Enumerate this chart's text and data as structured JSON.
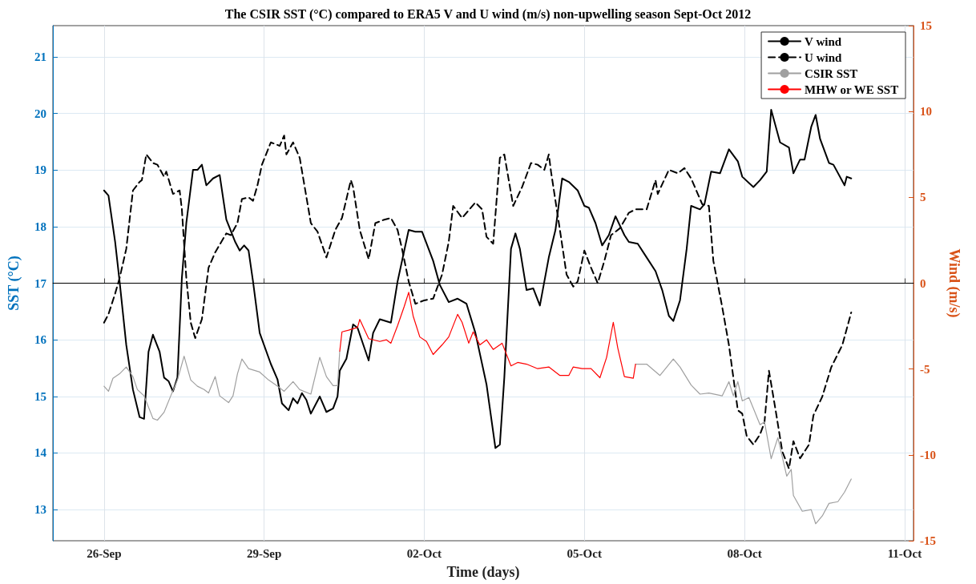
{
  "chart_data": {
    "type": "line",
    "title": "The CSIR SST (°C) compared to ERA5 V and U wind (m/s) non-upwelling season Sept-Oct 2012",
    "xlabel": "Time (days)",
    "ylabel": "SST (°C)",
    "y2label": "Wind (m/s)",
    "xlim": [
      "2012-09-25T01:00",
      "2012-10-11T04:00"
    ],
    "xticks": [
      {
        "value": "2012-09-26",
        "label": "26-Sep"
      },
      {
        "value": "2012-09-29",
        "label": "29-Sep"
      },
      {
        "value": "2012-10-02",
        "label": "02-Oct"
      },
      {
        "value": "2012-10-05",
        "label": "05-Oct"
      },
      {
        "value": "2012-10-08",
        "label": "08-Oct"
      },
      {
        "value": "2012-10-11",
        "label": "11-Oct"
      }
    ],
    "ylim": [
      12.45,
      21.55
    ],
    "yticks": [
      13,
      14,
      15,
      16,
      17,
      18,
      19,
      20,
      21
    ],
    "y2lim": [
      -15,
      15
    ],
    "y2ticks": [
      -15,
      -10,
      -5,
      0,
      5,
      10,
      15
    ],
    "grid": true,
    "legend": "top right",
    "marker": "none",
    "ref_lines": [
      {
        "axis": "y2",
        "value": 0,
        "color": "#000000"
      }
    ],
    "series": [
      {
        "name": "V wind",
        "color": "#000000",
        "axis": "y2",
        "line_style": "solid",
        "x": [
          "2012-09-26T00:00",
          "2012-09-26T02:00",
          "2012-09-26T05:00",
          "2012-09-26T07:00",
          "2012-09-26T10:00",
          "2012-09-26T13:00",
          "2012-09-26T16:00",
          "2012-09-26T18:00",
          "2012-09-26T20:00",
          "2012-09-26T22:00",
          "2012-09-27T01:00",
          "2012-09-27T03:00",
          "2012-09-27T05:00",
          "2012-09-27T07:00",
          "2012-09-27T09:00",
          "2012-09-27T11:00",
          "2012-09-27T13:00",
          "2012-09-27T16:00",
          "2012-09-27T18:00",
          "2012-09-27T20:00",
          "2012-09-27T22:00",
          "2012-09-28T01:00",
          "2012-09-28T04:00",
          "2012-09-28T07:00",
          "2012-09-28T11:00",
          "2012-09-28T13:00",
          "2012-09-28T15:00",
          "2012-09-28T17:00",
          "2012-09-28T19:00",
          "2012-09-28T22:00",
          "2012-09-29T03:00",
          "2012-09-29T06:00",
          "2012-09-29T08:00",
          "2012-09-29T11:00",
          "2012-09-29T13:00",
          "2012-09-29T15:00",
          "2012-09-29T17:00",
          "2012-09-29T19:00",
          "2012-09-29T21:00",
          "2012-09-30T01:00",
          "2012-09-30T04:00",
          "2012-09-30T07:00",
          "2012-09-30T09:00",
          "2012-09-30T10:00",
          "2012-09-30T13:00",
          "2012-09-30T16:00",
          "2012-09-30T18:00",
          "2012-09-30T23:00",
          "2012-10-01T01:00",
          "2012-10-01T04:00",
          "2012-10-01T09:00",
          "2012-10-01T12:00",
          "2012-10-01T17:00",
          "2012-10-01T20:00",
          "2012-10-01T23:00",
          "2012-10-02T04:00",
          "2012-10-02T07:00",
          "2012-10-02T11:00",
          "2012-10-02T15:00",
          "2012-10-02T19:00",
          "2012-10-02T23:00",
          "2012-10-03T04:00",
          "2012-10-03T08:00",
          "2012-10-03T10:00",
          "2012-10-03T12:00",
          "2012-10-03T15:00",
          "2012-10-03T17:00",
          "2012-10-03T19:00",
          "2012-10-03T22:00",
          "2012-10-04T01:00",
          "2012-10-04T04:00",
          "2012-10-04T08:00",
          "2012-10-04T11:00",
          "2012-10-04T14:00",
          "2012-10-04T17:00",
          "2012-10-04T21:00",
          "2012-10-05T00:00",
          "2012-10-05T02:00",
          "2012-10-05T05:00",
          "2012-10-05T08:00",
          "2012-10-05T11:00",
          "2012-10-05T14:00",
          "2012-10-05T18:00",
          "2012-10-05T20:00",
          "2012-10-06T00:00",
          "2012-10-06T04:00",
          "2012-10-06T08:00",
          "2012-10-06T11:00",
          "2012-10-06T14:00",
          "2012-10-06T16:00",
          "2012-10-06T19:00",
          "2012-10-06T22:00",
          "2012-10-07T00:00",
          "2012-10-07T04:00",
          "2012-10-07T06:00",
          "2012-10-07T09:00",
          "2012-10-07T13:00",
          "2012-10-07T17:00",
          "2012-10-07T21:00",
          "2012-10-07T23:00",
          "2012-10-08T04:00",
          "2012-10-08T07:00",
          "2012-10-08T10:00",
          "2012-10-08T12:00",
          "2012-10-08T16:00",
          "2012-10-08T20:00",
          "2012-10-08T22:00",
          "2012-10-09T01:00",
          "2012-10-09T03:00",
          "2012-10-09T06:00",
          "2012-10-09T08:00",
          "2012-10-09T10:00",
          "2012-10-09T14:00",
          "2012-10-09T16:00",
          "2012-10-09T21:00",
          "2012-10-09T22:00",
          "2012-10-10T00:00"
        ],
        "values": [
          5.4,
          5.1,
          2.4,
          0.1,
          -3.6,
          -6.2,
          -7.8,
          -7.9,
          -4.0,
          -3.0,
          -4.0,
          -5.5,
          -5.7,
          -6.3,
          -5.5,
          0.3,
          3.5,
          6.6,
          6.6,
          6.9,
          5.7,
          6.1,
          6.3,
          3.7,
          2.4,
          1.9,
          2.2,
          1.9,
          0.1,
          -2.9,
          -4.7,
          -5.6,
          -7.0,
          -7.4,
          -6.7,
          -7.0,
          -6.4,
          -6.8,
          -7.6,
          -6.6,
          -7.5,
          -7.3,
          -6.6,
          -5.1,
          -4.4,
          -2.4,
          -2.6,
          -4.5,
          -2.9,
          -2.1,
          -2.3,
          0.1,
          3.1,
          3.0,
          3.0,
          1.3,
          -0.1,
          -1.1,
          -0.9,
          -1.2,
          -2.9,
          -5.9,
          -9.6,
          -9.4,
          -5.5,
          2.0,
          2.9,
          2.0,
          -0.4,
          -0.3,
          -1.3,
          1.5,
          3.1,
          6.1,
          5.9,
          5.4,
          4.5,
          4.4,
          3.5,
          2.2,
          2.8,
          3.9,
          2.8,
          2.4,
          2.3,
          1.5,
          0.7,
          -0.4,
          -1.9,
          -2.2,
          -1.0,
          2.0,
          4.5,
          4.3,
          4.6,
          6.5,
          6.4,
          7.8,
          7.1,
          6.2,
          5.6,
          6.0,
          6.5,
          10.1,
          8.2,
          7.9,
          6.4,
          7.2,
          7.2,
          9.1,
          9.8,
          8.4,
          7.0,
          6.9,
          5.7,
          6.2,
          6.1
        ]
      },
      {
        "name": "U wind",
        "color": "#000000",
        "axis": "y2",
        "line_style": "dashed",
        "x": [
          "2012-09-26T00:00",
          "2012-09-26T02:00",
          "2012-09-26T05:00",
          "2012-09-26T07:00",
          "2012-09-26T10:00",
          "2012-09-26T13:00",
          "2012-09-26T16:00",
          "2012-09-26T17:00",
          "2012-09-26T19:00",
          "2012-09-26T22:00",
          "2012-09-27T00:00",
          "2012-09-27T03:00",
          "2012-09-27T04:00",
          "2012-09-27T07:00",
          "2012-09-27T10:00",
          "2012-09-27T11:00",
          "2012-09-27T13:00",
          "2012-09-27T15:00",
          "2012-09-27T17:00",
          "2012-09-27T20:00",
          "2012-09-27T23:00",
          "2012-09-28T02:00",
          "2012-09-28T07:00",
          "2012-09-28T09:00",
          "2012-09-28T12:00",
          "2012-09-28T14:00",
          "2012-09-28T17:00",
          "2012-09-28T19:00",
          "2012-09-28T21:00",
          "2012-09-28T23:00",
          "2012-09-29T03:00",
          "2012-09-29T07:00",
          "2012-09-29T09:00",
          "2012-09-29T10:00",
          "2012-09-29T13:00",
          "2012-09-29T16:00",
          "2012-09-29T21:00",
          "2012-09-30T00:00",
          "2012-09-30T04:00",
          "2012-09-30T08:00",
          "2012-09-30T11:00",
          "2012-09-30T15:00",
          "2012-09-30T16:00",
          "2012-09-30T19:00",
          "2012-09-30T23:00",
          "2012-10-01T02:00",
          "2012-10-01T06:00",
          "2012-10-01T09:00",
          "2012-10-01T12:00",
          "2012-10-01T14:00",
          "2012-10-01T17:00",
          "2012-10-01T20:00",
          "2012-10-02T00:00",
          "2012-10-02T04:00",
          "2012-10-02T08:00",
          "2012-10-02T11:00",
          "2012-10-02T13:00",
          "2012-10-02T17:00",
          "2012-10-02T23:00",
          "2012-10-03T02:00",
          "2012-10-03T04:00",
          "2012-10-03T07:00",
          "2012-10-03T10:00",
          "2012-10-03T12:00",
          "2012-10-03T16:00",
          "2012-10-03T20:00",
          "2012-10-04T00:00",
          "2012-10-04T03:00",
          "2012-10-04T06:00",
          "2012-10-04T08:00",
          "2012-10-04T09:00",
          "2012-10-04T13:00",
          "2012-10-04T16:00",
          "2012-10-04T19:00",
          "2012-10-04T21:00",
          "2012-10-05T00:00",
          "2012-10-05T03:00",
          "2012-10-05T06:00",
          "2012-10-05T09:00",
          "2012-10-05T12:00",
          "2012-10-05T16:00",
          "2012-10-05T20:00",
          "2012-10-05T23:00",
          "2012-10-06T04:00",
          "2012-10-06T08:00",
          "2012-10-06T09:00",
          "2012-10-06T14:00",
          "2012-10-06T18:00",
          "2012-10-06T21:00",
          "2012-10-07T00:00",
          "2012-10-07T03:00",
          "2012-10-07T05:00",
          "2012-10-07T08:00",
          "2012-10-07T10:00",
          "2012-10-07T14:00",
          "2012-10-07T17:00",
          "2012-10-07T21:00",
          "2012-10-07T23:00",
          "2012-10-08T01:00",
          "2012-10-08T04:00",
          "2012-10-08T07:00",
          "2012-10-08T09:00",
          "2012-10-08T11:00",
          "2012-10-08T14:00",
          "2012-10-08T17:00",
          "2012-10-08T20:00",
          "2012-10-08T22:00",
          "2012-10-09T01:00",
          "2012-10-09T05:00",
          "2012-10-09T07:00",
          "2012-10-09T11:00",
          "2012-10-09T15:00",
          "2012-10-09T20:00",
          "2012-10-10T00:00"
        ],
        "values": [
          -2.3,
          -1.8,
          -0.6,
          0.3,
          2.0,
          5.4,
          5.9,
          6.0,
          7.5,
          7.0,
          6.9,
          6.2,
          6.5,
          5.2,
          5.4,
          4.3,
          0.3,
          -2.3,
          -3.2,
          -2.1,
          0.9,
          1.8,
          2.9,
          2.8,
          3.5,
          4.9,
          5.0,
          4.8,
          5.7,
          6.9,
          8.2,
          8.0,
          8.6,
          7.5,
          8.2,
          7.3,
          3.5,
          3.0,
          1.5,
          3.1,
          3.8,
          6.0,
          5.6,
          3.1,
          1.4,
          3.5,
          3.7,
          3.8,
          3.1,
          2.0,
          0.1,
          -1.2,
          -1.0,
          -0.9,
          0.5,
          2.4,
          4.5,
          3.8,
          4.7,
          4.3,
          2.7,
          2.3,
          7.3,
          7.5,
          4.5,
          5.6,
          7.0,
          6.9,
          6.6,
          7.5,
          6.5,
          3.1,
          0.5,
          -0.2,
          0.1,
          1.9,
          0.9,
          0.0,
          1.3,
          2.8,
          3.2,
          4.1,
          4.3,
          4.3,
          6.0,
          5.2,
          6.6,
          6.4,
          6.7,
          6.1,
          5.2,
          4.6,
          4.5,
          1.3,
          -1.4,
          -3.6,
          -7.4,
          -7.6,
          -8.9,
          -9.4,
          -8.8,
          -8.1,
          -5.1,
          -7.4,
          -9.8,
          -10.8,
          -9.2,
          -10.2,
          -9.4,
          -7.7,
          -6.6,
          -4.9,
          -3.6,
          -1.7
        ]
      },
      {
        "name": "CSIR SST",
        "color": "#a0a0a0",
        "line_style": "solid",
        "x": [
          "2012-09-26T00:00",
          "2012-09-26T02:00",
          "2012-09-26T04:00",
          "2012-09-26T07:00",
          "2012-09-26T10:00",
          "2012-09-26T13:00",
          "2012-09-26T15:00",
          "2012-09-26T18:00",
          "2012-09-26T22:00",
          "2012-09-27T00:00",
          "2012-09-27T03:00",
          "2012-09-27T06:00",
          "2012-09-27T09:00",
          "2012-09-27T12:00",
          "2012-09-27T15:00",
          "2012-09-27T18:00",
          "2012-09-27T21:00",
          "2012-09-27T23:00",
          "2012-09-28T02:00",
          "2012-09-28T04:00",
          "2012-09-28T08:00",
          "2012-09-28T10:00",
          "2012-09-28T12:00",
          "2012-09-28T14:00",
          "2012-09-28T17:00",
          "2012-09-28T22:00",
          "2012-09-29T02:00",
          "2012-09-29T06:00",
          "2012-09-29T09:00",
          "2012-09-29T13:00",
          "2012-09-29T16:00",
          "2012-09-29T21:00",
          "2012-09-30T01:00",
          "2012-09-30T04:00",
          "2012-09-30T07:00",
          "2012-09-30T09:00",
          "2012-09-30T10:00",
          "2012-10-03T02:00",
          "2012-10-05T23:00",
          "2012-10-06T04:00",
          "2012-10-06T10:00",
          "2012-10-06T16:00",
          "2012-10-06T19:00",
          "2012-10-07T00:00",
          "2012-10-07T04:00",
          "2012-10-07T08:00",
          "2012-10-07T14:00",
          "2012-10-07T17:00",
          "2012-10-07T19:00",
          "2012-10-07T21:00",
          "2012-10-07T23:00",
          "2012-10-08T02:00",
          "2012-10-08T07:00",
          "2012-10-08T09:00",
          "2012-10-08T12:00",
          "2012-10-08T15:00",
          "2012-10-08T19:00",
          "2012-10-08T21:00",
          "2012-10-08T22:00",
          "2012-10-09T02:00",
          "2012-10-09T06:00",
          "2012-10-09T08:00",
          "2012-10-09T11:00",
          "2012-10-09T14:00",
          "2012-10-09T18:00",
          "2012-10-09T21:00",
          "2012-10-10T00:00"
        ],
        "values": [
          15.18,
          15.09,
          15.32,
          15.4,
          15.52,
          15.35,
          15.12,
          15.01,
          14.61,
          14.58,
          14.72,
          15.01,
          15.29,
          15.71,
          15.29,
          15.18,
          15.12,
          15.06,
          15.35,
          15.01,
          14.89,
          15.01,
          15.4,
          15.66,
          15.49,
          15.43,
          15.29,
          15.18,
          15.09,
          15.26,
          15.12,
          15.04,
          15.69,
          15.35,
          15.19,
          15.19,
          15.8,
          null,
          15.57,
          15.57,
          15.37,
          15.66,
          15.52,
          15.2,
          15.04,
          15.06,
          15.01,
          15.26,
          15.01,
          15.26,
          14.92,
          14.98,
          14.5,
          14.55,
          13.9,
          14.27,
          13.59,
          13.71,
          13.25,
          12.97,
          13.0,
          12.75,
          12.89,
          13.11,
          13.14,
          13.31,
          13.54
        ]
      },
      {
        "name": "MHW or WE SST",
        "color": "#ff0000",
        "line_style": "solid",
        "x": [
          "2012-09-30T10:00",
          "2012-09-30T11:00",
          "2012-09-30T14:00",
          "2012-09-30T18:00",
          "2012-09-30T19:00",
          "2012-09-30T23:00",
          "2012-10-01T04:00",
          "2012-10-01T07:00",
          "2012-10-01T09:00",
          "2012-10-01T12:00",
          "2012-10-01T15:00",
          "2012-10-01T17:00",
          "2012-10-01T19:00",
          "2012-10-01T22:00",
          "2012-10-02T01:00",
          "2012-10-02T04:00",
          "2012-10-02T08:00",
          "2012-10-02T11:00",
          "2012-10-02T15:00",
          "2012-10-02T17:00",
          "2012-10-02T20:00",
          "2012-10-02T22:00",
          "2012-10-03T01:00",
          "2012-10-03T04:00",
          "2012-10-03T07:00",
          "2012-10-03T11:00",
          "2012-10-03T15:00",
          "2012-10-03T18:00",
          "2012-10-03T22:00",
          "2012-10-04T03:00",
          "2012-10-04T08:00",
          "2012-10-04T13:00",
          "2012-10-04T17:00",
          "2012-10-04T19:00",
          "2012-10-04T23:00",
          "2012-10-05T03:00",
          "2012-10-05T07:00",
          "2012-10-05T10:00",
          "2012-10-05T13:00",
          "2012-10-05T15:00",
          "2012-10-05T18:00",
          "2012-10-05T22:00",
          "2012-10-05T23:00"
        ],
        "values": [
          15.8,
          16.14,
          16.17,
          16.22,
          16.36,
          16.02,
          15.97,
          16.0,
          15.94,
          16.25,
          16.59,
          16.84,
          16.42,
          16.05,
          15.97,
          15.74,
          15.91,
          16.05,
          16.45,
          16.31,
          15.94,
          16.14,
          15.91,
          16.0,
          15.83,
          15.94,
          15.54,
          15.6,
          15.57,
          15.49,
          15.52,
          15.37,
          15.37,
          15.52,
          15.49,
          15.49,
          15.33,
          15.69,
          16.31,
          15.86,
          15.35,
          15.32,
          15.57
        ]
      }
    ]
  }
}
